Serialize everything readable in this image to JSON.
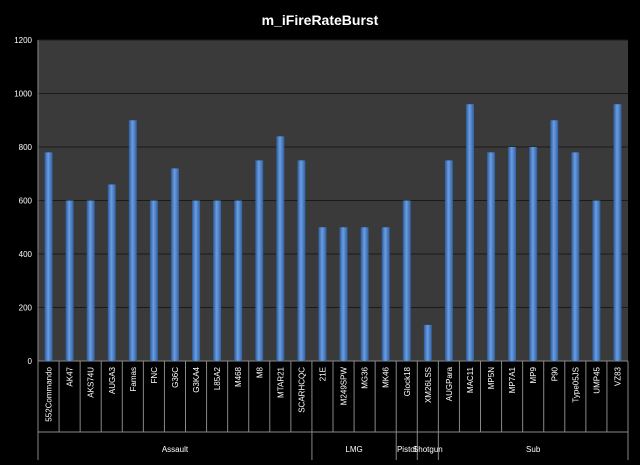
{
  "chart_data": {
    "type": "bar",
    "title": "m_iFireRateBurst",
    "xlabel": "",
    "ylabel": "",
    "ylim": [
      0,
      1200
    ],
    "yticks": [
      0,
      200,
      400,
      600,
      800,
      1000,
      1200
    ],
    "grid": true,
    "legend": "none",
    "categories": [
      "552Commando",
      "AK47",
      "AKS74U",
      "AUGA3",
      "Famas",
      "FNC",
      "G36C",
      "G3KA4",
      "L85A2",
      "M468",
      "M8",
      "MTAR21",
      "SCARHCQC",
      "21E",
      "M249SPW",
      "MG36",
      "MK46",
      "Glock18",
      "XM26LSS",
      "AUGPara",
      "MAC11",
      "MP5N",
      "MP7A1",
      "MP9",
      "P90",
      "Type05JS",
      "UMP45",
      "VZ83"
    ],
    "values": [
      780,
      600,
      600,
      660,
      900,
      600,
      720,
      600,
      600,
      600,
      750,
      840,
      750,
      500,
      500,
      500,
      500,
      600,
      135,
      750,
      960,
      780,
      800,
      800,
      900,
      780,
      600,
      960
    ],
    "groups": [
      {
        "name": "Assault",
        "count": 13
      },
      {
        "name": "LMG",
        "count": 4
      },
      {
        "name": "Pistol",
        "count": 1
      },
      {
        "name": "Shotgun",
        "count": 1
      },
      {
        "name": "Sub",
        "count": 9
      }
    ],
    "colors": {
      "background": "#000000",
      "plot": "#3a3a3a",
      "grid": "#1a1a1a",
      "bar": "#4a7fc4",
      "text": "#ffffff"
    }
  }
}
